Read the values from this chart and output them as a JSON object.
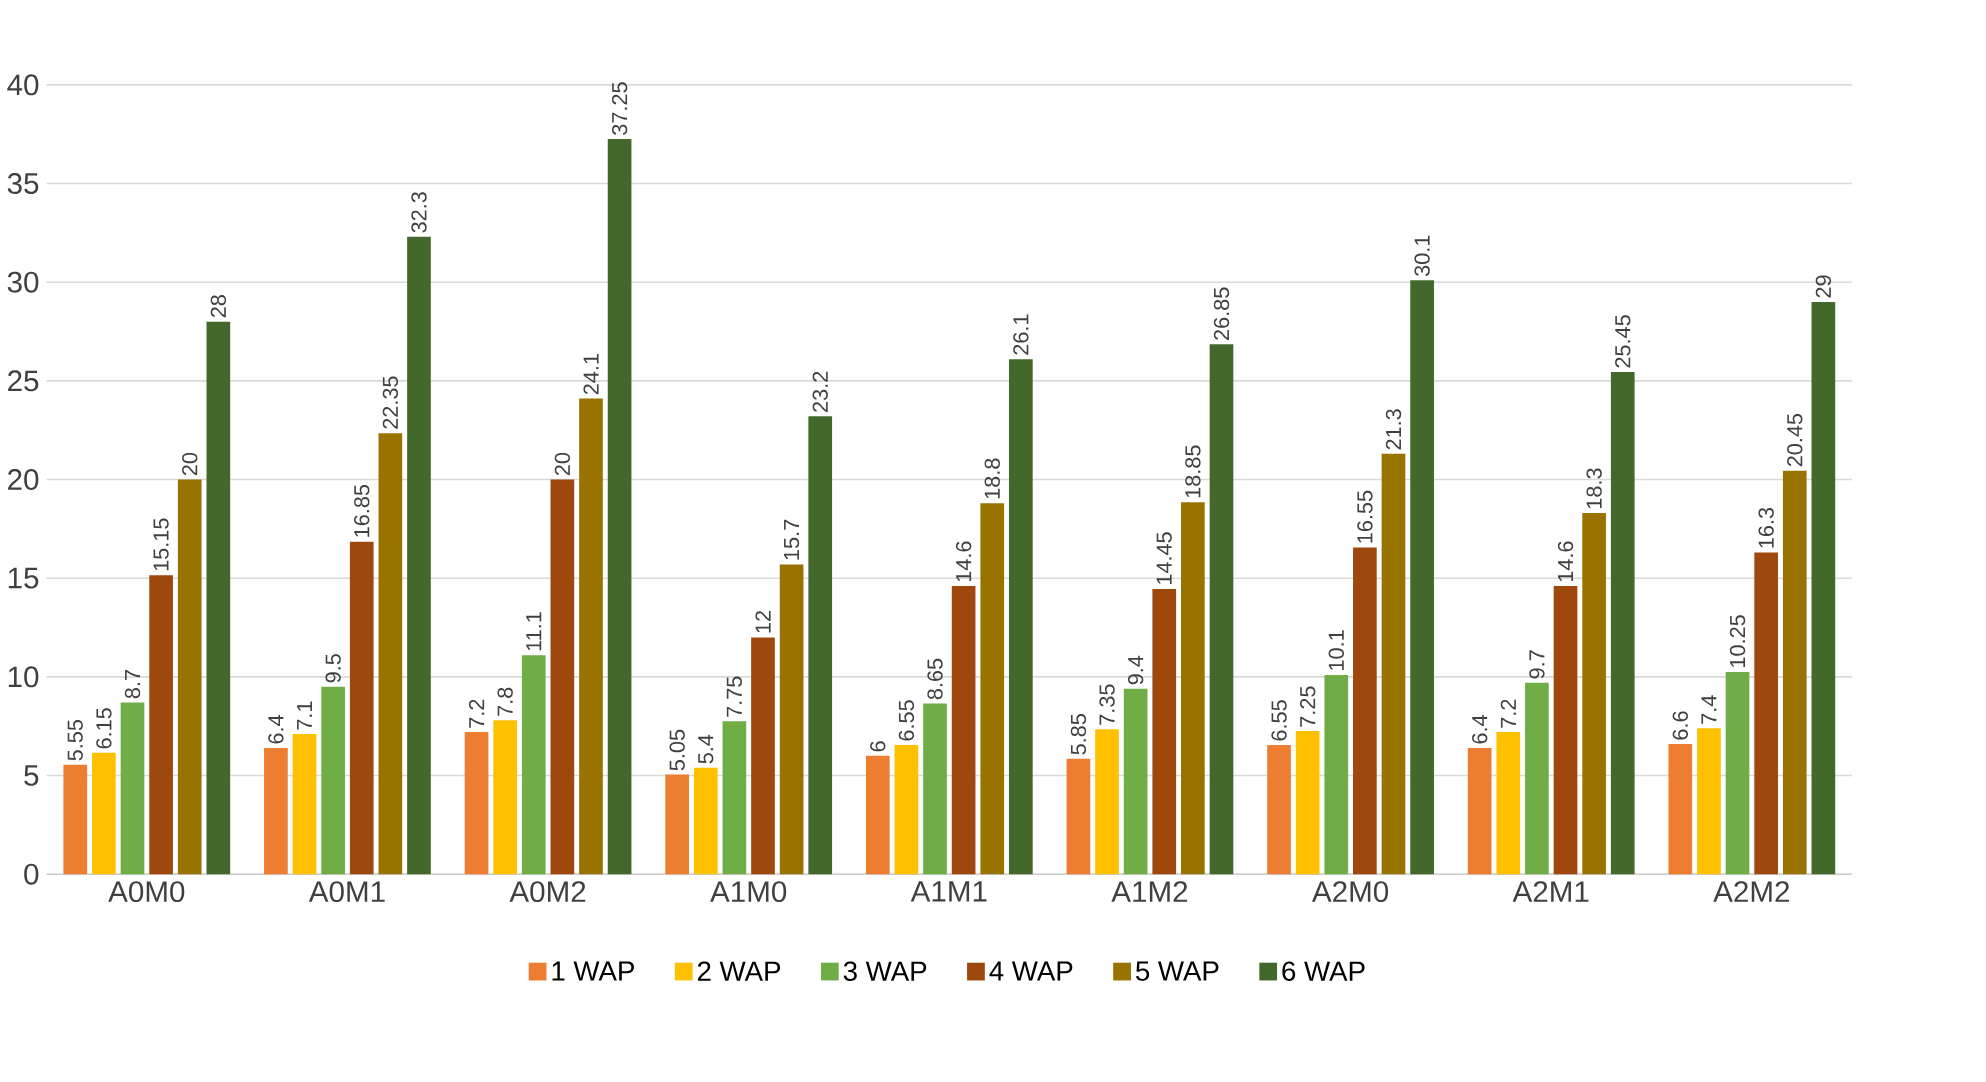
{
  "chart_data": {
    "type": "bar",
    "categories": [
      "A0M0",
      "A0M1",
      "A0M2",
      "A1M0",
      "A1M1",
      "A1M2",
      "A2M0",
      "A2M1",
      "A2M2"
    ],
    "series": [
      {
        "name": "1 WAP",
        "color": "#ed7d31",
        "values": [
          5.55,
          6.4,
          7.2,
          5.05,
          6,
          5.85,
          6.55,
          6.4,
          6.6
        ]
      },
      {
        "name": "2 WAP",
        "color": "#ffc000",
        "values": [
          6.15,
          7.1,
          7.8,
          5.4,
          6.55,
          7.35,
          7.25,
          7.2,
          7.4
        ]
      },
      {
        "name": "3 WAP",
        "color": "#70ad47",
        "values": [
          8.7,
          9.5,
          11.1,
          7.75,
          8.65,
          9.4,
          10.1,
          9.7,
          10.25
        ]
      },
      {
        "name": "4 WAP",
        "color": "#9e480e",
        "values": [
          15.15,
          16.85,
          20,
          12,
          14.6,
          14.45,
          16.55,
          14.6,
          16.3
        ]
      },
      {
        "name": "5 WAP",
        "color": "#997300",
        "values": [
          20,
          22.35,
          24.1,
          15.7,
          18.8,
          18.85,
          21.3,
          18.3,
          20.45
        ]
      },
      {
        "name": "6 WAP",
        "color": "#43682b",
        "values": [
          28,
          32.3,
          37.25,
          23.2,
          26.1,
          26.85,
          30.1,
          25.45,
          29
        ]
      }
    ],
    "ylim": [
      0,
      40
    ],
    "yticks": [
      0,
      5,
      10,
      15,
      20,
      25,
      30,
      35,
      40
    ],
    "grid": "y",
    "legend": "bottom",
    "data_labels": true
  }
}
